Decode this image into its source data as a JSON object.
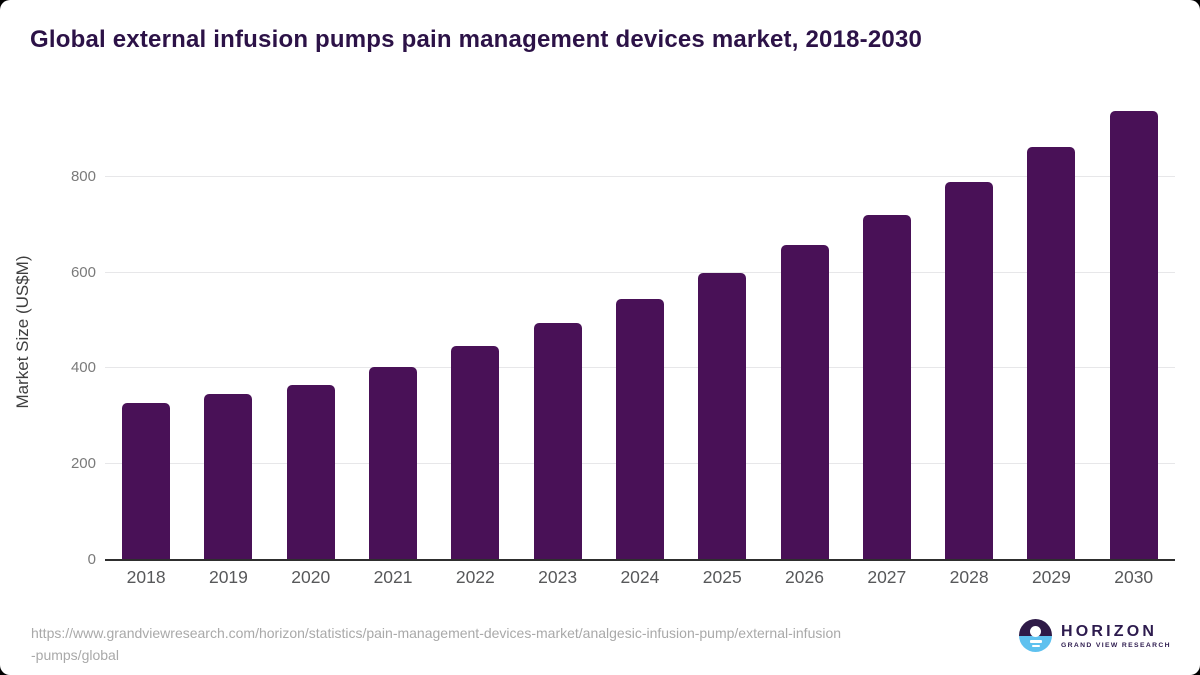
{
  "header": {
    "title": "Global external infusion pumps pain management devices market, 2018-2030"
  },
  "chart_data": {
    "type": "bar",
    "title": "Global external infusion pumps pain management devices market, 2018-2030",
    "categories": [
      "2018",
      "2019",
      "2020",
      "2021",
      "2022",
      "2023",
      "2024",
      "2025",
      "2026",
      "2027",
      "2028",
      "2029",
      "2030"
    ],
    "values": [
      327,
      346,
      365,
      403,
      447,
      495,
      544,
      600,
      658,
      721,
      788,
      861,
      937
    ],
    "xlabel": "",
    "ylabel": "Market Size (US$M)",
    "yticks": [
      0,
      200,
      400,
      600,
      800
    ],
    "ylim": [
      0,
      960
    ],
    "grid": true,
    "legend": "none",
    "bar_color": "#491157"
  },
  "colors": {
    "bar": "#491157",
    "title_text": "#2c1247",
    "axis_line": "#2e2e2e",
    "gridline": "#e7e7e9",
    "tick_text": "#7a7a7a",
    "xlabel_text": "#57585a",
    "url_text": "#a9a9a9",
    "logo_purple": "#2d1b4e",
    "logo_blue": "#5ec1ef"
  },
  "footer": {
    "source_url_line1": "https://www.grandviewresearch.com/horizon/statistics/pain-management-devices-market/analgesic-infusion",
    "source_url_line2": "-pumps/global",
    "source_url_line1_full": "https://www.grandviewresearch.com/horizon/statistics/pain-management-devices-market/analgesic-infusion-pump/external-infusion",
    "logo": {
      "name": "HORIZON",
      "subtitle": "GRAND VIEW RESEARCH"
    }
  }
}
